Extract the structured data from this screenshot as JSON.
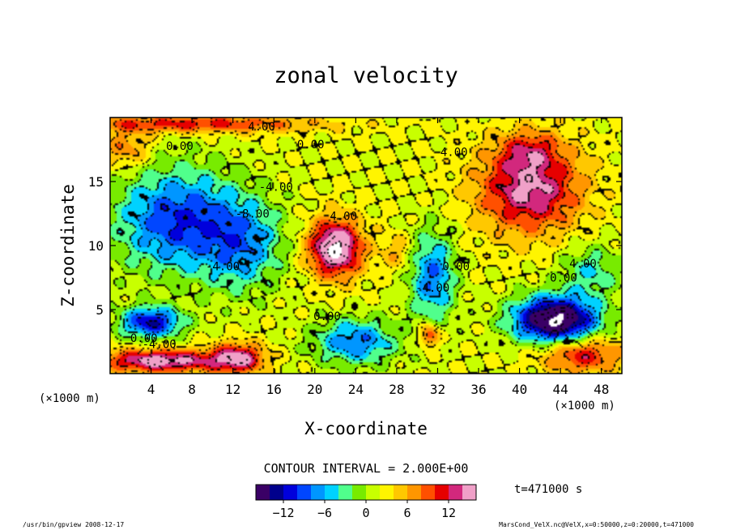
{
  "chart_data": {
    "type": "heatmap",
    "title": "zonal velocity",
    "xlabel": "X-coordinate",
    "ylabel": "Z-coordinate",
    "x_unit_label": "(×1000 m)",
    "y_unit_label": "(×1000 m)",
    "xlim": [
      0,
      50
    ],
    "ylim": [
      0,
      20
    ],
    "x_ticks": [
      4,
      8,
      12,
      16,
      20,
      24,
      28,
      32,
      36,
      40,
      44,
      48
    ],
    "y_ticks": [
      5,
      10,
      15
    ],
    "contour_interval_label": "CONTOUR INTERVAL = 2.000E+00",
    "contour_labels": [
      {
        "text": "4.00",
        "x": 14.8,
        "z": 19.3
      },
      {
        "text": "0.00",
        "x": 6.8,
        "z": 17.8
      },
      {
        "text": "0.00",
        "x": 19.6,
        "z": 17.9
      },
      {
        "text": "4.00",
        "x": 33.6,
        "z": 17.3
      },
      {
        "text": "-4.00",
        "x": 16.2,
        "z": 14.6
      },
      {
        "text": "-8.00",
        "x": 13.9,
        "z": 12.5
      },
      {
        "text": "4.00",
        "x": 22.8,
        "z": 12.3
      },
      {
        "text": "-4.00",
        "x": 11.0,
        "z": 8.4
      },
      {
        "text": "0.00",
        "x": 33.8,
        "z": 8.4
      },
      {
        "text": "-4.00",
        "x": 31.5,
        "z": 6.7
      },
      {
        "text": "4.00",
        "x": 46.2,
        "z": 8.6
      },
      {
        "text": "0.00",
        "x": 44.3,
        "z": 7.5
      },
      {
        "text": "0.00",
        "x": 21.2,
        "z": 4.5
      },
      {
        "text": "0.00",
        "x": 3.3,
        "z": 2.8
      },
      {
        "text": "-4.00",
        "x": 4.8,
        "z": 2.3
      }
    ],
    "colorbar": {
      "range": [
        -16,
        16
      ],
      "ticks": [
        -12,
        -6,
        0,
        6,
        12
      ],
      "colors": [
        "#3a0066",
        "#00008c",
        "#0000dc",
        "#0046ff",
        "#0096ff",
        "#00d2ff",
        "#50ff8c",
        "#78eb00",
        "#c8ff00",
        "#fff500",
        "#ffc800",
        "#ff9600",
        "#ff5000",
        "#e60000",
        "#d2287d",
        "#f0a0c8"
      ]
    },
    "fields": [
      {
        "name": "upper-warm-band",
        "x": 8,
        "z": 19.5,
        "sx": 12,
        "sz": 0.7,
        "a": 9
      },
      {
        "name": "upper-left-warm",
        "x": 1.5,
        "z": 17.5,
        "sx": 2.5,
        "sz": 1.5,
        "a": 6
      },
      {
        "name": "left-cold-region",
        "x": 6.5,
        "z": 12,
        "sx": 6,
        "sz": 4,
        "a": -12
      },
      {
        "name": "left-mid-cold",
        "x": 13,
        "z": 10,
        "sx": 4,
        "sz": 3.5,
        "a": -8
      },
      {
        "name": "central-jet-core",
        "x": 22,
        "z": 9.8,
        "sx": 2.6,
        "sz": 2.2,
        "a": 17
      },
      {
        "name": "right-jet-core",
        "x": 41,
        "z": 14.5,
        "sx": 5,
        "sz": 3.5,
        "a": 13
      },
      {
        "name": "right-jet-top",
        "x": 41,
        "z": 17.5,
        "sx": 3,
        "sz": 1.4,
        "a": 5
      },
      {
        "name": "cold-column",
        "x": 31.5,
        "z": 7.5,
        "sx": 2.2,
        "sz": 3.5,
        "a": -10
      },
      {
        "name": "cold-pocket-lower",
        "x": 24,
        "z": 2.5,
        "sx": 4,
        "sz": 1.8,
        "a": -10
      },
      {
        "name": "surface-cold-strong",
        "x": 43.5,
        "z": 4.2,
        "sx": 4,
        "sz": 1.8,
        "a": -22
      },
      {
        "name": "surface-cold-left",
        "x": 4,
        "z": 4,
        "sx": 3,
        "sz": 1.2,
        "a": -14
      },
      {
        "name": "surface-warm-left",
        "x": 5,
        "z": 1.0,
        "sx": 6,
        "sz": 0.9,
        "a": 14
      },
      {
        "name": "surface-warm-mid",
        "x": 12.5,
        "z": 1.2,
        "sx": 2.5,
        "sz": 1.2,
        "a": 12
      },
      {
        "name": "surface-warm-right",
        "x": 46,
        "z": 1.5,
        "sx": 4,
        "sz": 1.4,
        "a": 10
      },
      {
        "name": "small-warm-blob",
        "x": 31.2,
        "z": 3,
        "sx": 1.0,
        "sz": 0.9,
        "a": 10
      },
      {
        "name": "green-wedge",
        "x": 28,
        "z": 9.5,
        "sx": 1.5,
        "sz": 1.5,
        "a": 4
      },
      {
        "name": "right-cold-tongue",
        "x": 47,
        "z": 8,
        "sx": 3,
        "sz": 2,
        "a": -6
      }
    ]
  },
  "colorbar_tick_labels": [
    "−12",
    "−6",
    "0",
    "6",
    "12"
  ],
  "time_label": "t=471000 s",
  "footer": {
    "left": "/usr/bin/gpview  2008-12-17",
    "right": "MarsCond_VelX.nc@VelX,x=0:50000,z=0:20000,t=471000"
  }
}
